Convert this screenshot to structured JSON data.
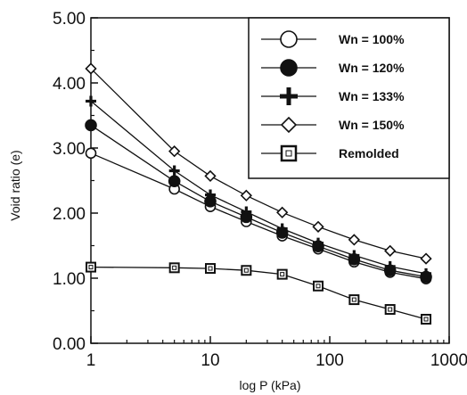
{
  "chart_data": {
    "type": "line",
    "xlabel": "log P (kPa)",
    "ylabel": "Void ratio (e)",
    "xscale": "log",
    "xlim": [
      1,
      1000
    ],
    "ylim": [
      0,
      5
    ],
    "xticks": [
      "1",
      "10",
      "100",
      "1000"
    ],
    "yticks": [
      "0.00",
      "1.00",
      "2.00",
      "3.00",
      "4.00",
      "5.00"
    ],
    "grid": false,
    "legend_position": "top-right",
    "series": [
      {
        "name": "Wn = 100%",
        "marker": "open-circle",
        "x": [
          1,
          5,
          10,
          20,
          40,
          80,
          160,
          320,
          640
        ],
        "y": [
          2.92,
          2.37,
          2.1,
          1.87,
          1.65,
          1.45,
          1.25,
          1.09,
          0.99
        ]
      },
      {
        "name": "Wn = 120%",
        "marker": "filled-circle",
        "x": [
          1,
          5,
          10,
          20,
          40,
          80,
          160,
          320,
          640
        ],
        "y": [
          3.35,
          2.49,
          2.18,
          1.94,
          1.7,
          1.49,
          1.29,
          1.12,
          1.02
        ]
      },
      {
        "name": "Wn = 133%",
        "marker": "plus",
        "x": [
          1,
          5,
          10,
          20,
          40,
          80,
          160,
          320,
          640
        ],
        "y": [
          3.72,
          2.65,
          2.28,
          2.02,
          1.76,
          1.54,
          1.35,
          1.18,
          1.07
        ]
      },
      {
        "name": "Wn = 150%",
        "marker": "open-diamond",
        "x": [
          1,
          5,
          10,
          20,
          40,
          80,
          160,
          320,
          640
        ],
        "y": [
          4.22,
          2.95,
          2.57,
          2.27,
          2.01,
          1.79,
          1.59,
          1.42,
          1.3
        ]
      },
      {
        "name": "Remolded",
        "marker": "open-square",
        "x": [
          1,
          5,
          10,
          20,
          40,
          80,
          160,
          320,
          640
        ],
        "y": [
          1.17,
          1.16,
          1.15,
          1.12,
          1.06,
          0.88,
          0.67,
          0.52,
          0.37
        ]
      }
    ]
  }
}
